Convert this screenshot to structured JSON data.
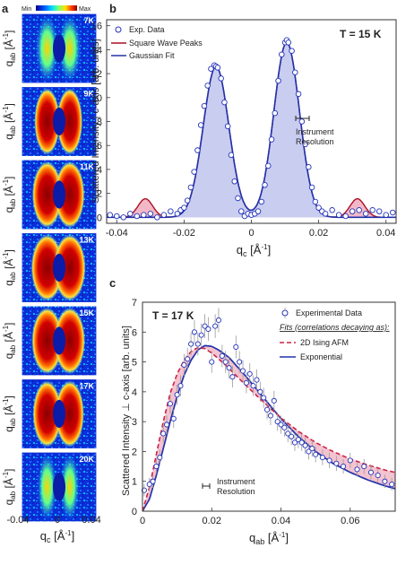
{
  "panel_a": {
    "letter": "a",
    "colorbar": {
      "min_label": "Min",
      "max_label": "Max"
    },
    "temps": [
      "7K",
      "9K",
      "11K",
      "13K",
      "15K",
      "17K",
      "20K"
    ],
    "ylabel": "q",
    "ylabel_sub": "ab",
    "ylabel_unit": "[Å",
    "ylabel_exp": "-1",
    "ylabel_close": "]",
    "xlabel": "q",
    "xlabel_sub": "c",
    "xlabel_unit": "[Å",
    "xlabel_exp": "-1",
    "xlabel_close": "]",
    "xticks": [
      "-0.04",
      "0",
      "0.04"
    ]
  },
  "panel_b": {
    "letter": "b",
    "temp": "T = 15 K",
    "ylabel": "Scattered Intensity | c-axis [arb. units]",
    "xlabel": "q",
    "xlabel_sub": "c",
    "xlabel_unit": "[Å",
    "xlabel_exp": "-1",
    "xlabel_close": "]",
    "legend": [
      "Exp. Data",
      "Square Wave Peaks",
      "Gaussian Fit"
    ],
    "annotation": [
      "Instrument",
      "Resolution"
    ],
    "xticks": [
      "-0.04",
      "-0.02",
      "0",
      "0.02",
      "0.04"
    ],
    "yticks": [
      "0",
      "2",
      "4",
      "6",
      "8",
      "10",
      "12",
      "14",
      "16"
    ]
  },
  "panel_c": {
    "letter": "c",
    "temp": "T = 17 K",
    "ylabel": "Scattered Intensity ⊥ c-axis [arb. units]",
    "xlabel": "q",
    "xlabel_sub": "ab",
    "xlabel_unit": "[Å",
    "xlabel_exp": "-1",
    "xlabel_close": "]",
    "legend_data": "Experimental Data",
    "legend_fits_title": "Fits (correlations decaying as):",
    "legend": [
      "2D Ising AFM",
      "Exponential"
    ],
    "annotation": [
      "Instrument",
      "Resolution"
    ],
    "xticks": [
      "0",
      "0.02",
      "0.04",
      "0.06"
    ],
    "yticks": [
      "0",
      "1",
      "2",
      "3",
      "4",
      "5",
      "6",
      "7"
    ]
  },
  "colors": {
    "data": "#2233bb",
    "gauss": "#2233aa",
    "square": "#aa1122",
    "ising": "#cc2244",
    "fill_blue": "#c9cdf0",
    "fill_pink": "#f2b8c8"
  },
  "chart_data": [
    {
      "type": "heatmap",
      "title": "",
      "xlabel": "q_c [Å^-1]",
      "ylabel": "q_ab [Å^-1]",
      "xlim": [
        -0.04,
        0.04
      ],
      "panels": [
        "7K",
        "9K",
        "11K",
        "13K",
        "15K",
        "17K",
        "20K"
      ]
    },
    {
      "type": "line",
      "title": "T = 15 K",
      "xlabel": "q_c [Å^-1]",
      "ylabel": "Scattered Intensity | c-axis [arb. units]",
      "xlim": [
        -0.043,
        0.043
      ],
      "ylim": [
        -0.5,
        16.5
      ],
      "series": [
        {
          "name": "Exp. Data",
          "kind": "scatter",
          "x": [
            -0.042,
            -0.04,
            -0.038,
            -0.036,
            -0.034,
            -0.032,
            -0.03,
            -0.028,
            -0.026,
            -0.024,
            -0.022,
            -0.021,
            -0.02,
            -0.019,
            -0.018,
            -0.017,
            -0.016,
            -0.015,
            -0.014,
            -0.013,
            -0.012,
            -0.011,
            -0.0105,
            -0.01,
            -0.009,
            -0.008,
            -0.007,
            -0.006,
            -0.005,
            -0.004,
            -0.003,
            -0.002,
            -0.001,
            0.0,
            0.001,
            0.002,
            0.003,
            0.004,
            0.005,
            0.006,
            0.007,
            0.008,
            0.009,
            0.01,
            0.0105,
            0.011,
            0.012,
            0.013,
            0.014,
            0.015,
            0.016,
            0.017,
            0.018,
            0.019,
            0.02,
            0.021,
            0.022,
            0.024,
            0.026,
            0.028,
            0.03,
            0.032,
            0.034,
            0.036,
            0.038,
            0.04,
            0.042
          ],
          "y": [
            0.2,
            0.1,
            0.0,
            0.3,
            0.1,
            0.2,
            0.3,
            0.0,
            0.2,
            0.5,
            0.3,
            0.6,
            0.8,
            1.4,
            2.5,
            3.8,
            5.6,
            7.7,
            9.3,
            11.0,
            12.4,
            12.7,
            12.6,
            12.5,
            11.6,
            9.6,
            7.6,
            5.2,
            3.0,
            1.6,
            0.5,
            0.1,
            0.3,
            0.2,
            0.3,
            0.5,
            1.3,
            2.7,
            4.3,
            6.5,
            8.7,
            11.4,
            13.6,
            14.6,
            14.8,
            14.6,
            13.9,
            12.1,
            10.3,
            8.0,
            6.1,
            4.2,
            2.5,
            1.3,
            0.8,
            0.5,
            0.3,
            0.6,
            0.2,
            0.1,
            0.5,
            0.6,
            0.3,
            0.6,
            0.5,
            0.2,
            0.4
          ]
        },
        {
          "name": "Gaussian Fit",
          "kind": "line",
          "peaks": [
            {
              "center": -0.0105,
              "amp": 12.6,
              "sigma": 0.0038
            },
            {
              "center": 0.0105,
              "amp": 14.6,
              "sigma": 0.0038
            }
          ]
        },
        {
          "name": "Square Wave Peaks",
          "kind": "line",
          "peaks": [
            {
              "center": -0.0315,
              "amp": 1.55,
              "sigma": 0.0022
            },
            {
              "center": 0.0315,
              "amp": 1.55,
              "sigma": 0.0022
            }
          ]
        }
      ]
    },
    {
      "type": "line",
      "title": "T = 17 K",
      "xlabel": "q_ab [Å^-1]",
      "ylabel": "Scattered Intensity ⊥ c-axis [arb. units]",
      "xlim": [
        0,
        0.073
      ],
      "ylim": [
        0,
        7
      ],
      "series": [
        {
          "name": "Experimental Data",
          "kind": "scatter",
          "x": [
            0.0005,
            0.002,
            0.003,
            0.004,
            0.005,
            0.006,
            0.007,
            0.008,
            0.009,
            0.01,
            0.011,
            0.012,
            0.013,
            0.014,
            0.015,
            0.016,
            0.017,
            0.018,
            0.019,
            0.02,
            0.021,
            0.022,
            0.023,
            0.024,
            0.025,
            0.026,
            0.027,
            0.028,
            0.029,
            0.03,
            0.031,
            0.032,
            0.033,
            0.034,
            0.035,
            0.036,
            0.037,
            0.038,
            0.039,
            0.04,
            0.041,
            0.042,
            0.043,
            0.044,
            0.045,
            0.046,
            0.047,
            0.048,
            0.049,
            0.05,
            0.052,
            0.054,
            0.056,
            0.058,
            0.06,
            0.062,
            0.064,
            0.066,
            0.068,
            0.07,
            0.072
          ],
          "y": [
            0.7,
            0.9,
            1.0,
            1.5,
            1.8,
            2.6,
            2.9,
            3.6,
            3.1,
            3.9,
            4.2,
            4.9,
            5.1,
            5.6,
            6.0,
            5.6,
            5.9,
            6.2,
            6.1,
            5.0,
            6.2,
            6.4,
            5.2,
            5.0,
            4.8,
            4.5,
            5.5,
            5.0,
            4.7,
            4.3,
            4.6,
            4.2,
            4.4,
            4.0,
            3.8,
            3.4,
            3.2,
            3.7,
            3.0,
            2.9,
            2.8,
            2.6,
            2.5,
            2.3,
            2.4,
            2.3,
            2.2,
            2.0,
            2.1,
            1.9,
            1.8,
            1.7,
            1.6,
            1.5,
            1.7,
            1.4,
            1.5,
            1.3,
            1.2,
            1.0,
            0.9
          ]
        },
        {
          "name": "2D Ising AFM",
          "kind": "line",
          "x": [
            0,
            0.002,
            0.004,
            0.006,
            0.008,
            0.01,
            0.012,
            0.014,
            0.016,
            0.018,
            0.02,
            0.022,
            0.025,
            0.03,
            0.035,
            0.04,
            0.045,
            0.05,
            0.055,
            0.06,
            0.065,
            0.07,
            0.073
          ],
          "y": [
            0.0,
            0.8,
            1.9,
            3.0,
            3.95,
            4.6,
            5.05,
            5.35,
            5.48,
            5.45,
            5.3,
            5.1,
            4.78,
            4.2,
            3.65,
            3.12,
            2.68,
            2.3,
            2.0,
            1.75,
            1.55,
            1.38,
            1.3
          ]
        },
        {
          "name": "Exponential",
          "kind": "line",
          "x": [
            0,
            0.002,
            0.004,
            0.006,
            0.008,
            0.01,
            0.012,
            0.014,
            0.016,
            0.018,
            0.02,
            0.022,
            0.025,
            0.03,
            0.035,
            0.04,
            0.045,
            0.05,
            0.055,
            0.06,
            0.065,
            0.07,
            0.073
          ],
          "y": [
            0.0,
            0.4,
            1.2,
            2.1,
            3.0,
            3.85,
            4.55,
            5.05,
            5.4,
            5.55,
            5.52,
            5.4,
            5.15,
            4.5,
            3.8,
            3.1,
            2.5,
            2.0,
            1.6,
            1.3,
            1.05,
            0.85,
            0.75
          ]
        }
      ]
    }
  ]
}
